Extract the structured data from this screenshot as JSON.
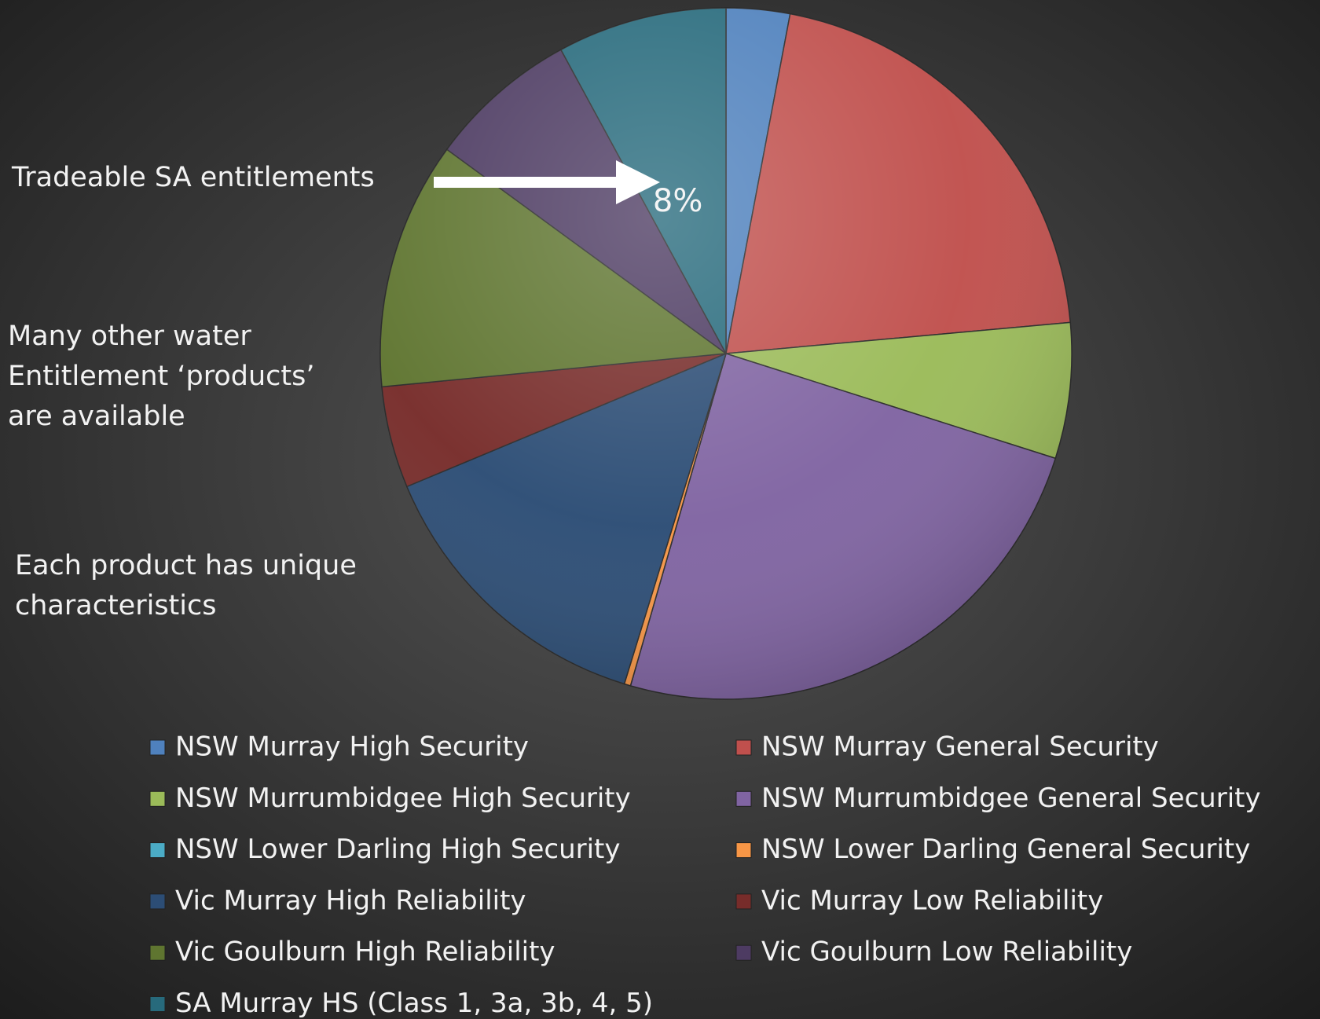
{
  "chart_data": {
    "type": "pie",
    "categories": [
      "NSW Murray High Security",
      "NSW Murray General Security",
      "NSW Murrumbidgee High Security",
      "NSW Murrumbidgee General Security",
      "NSW Lower Darling High Security",
      "NSW Lower Darling General Security",
      "Vic Murray High Reliability",
      "Vic Murray Low Reliability",
      "Vic Goulburn High Reliability",
      "Vic Goulburn Low Reliability",
      "SA Murray HS (Class 1, 3a, 3b, 4, 5)"
    ],
    "values": [
      3,
      20.8,
      6.4,
      24.8,
      0,
      0.3,
      14.1,
      4.8,
      11.7,
      7.1,
      8
    ],
    "value_labels": [
      null,
      null,
      null,
      null,
      null,
      null,
      null,
      null,
      null,
      null,
      "8%"
    ],
    "colors": [
      "#4f81bd",
      "#c0504d",
      "#9bbb59",
      "#8064a2",
      "#4bacc6",
      "#f79646",
      "#2c4d75",
      "#772c2a",
      "#5f7530",
      "#4d3b62",
      "#276a7c"
    ],
    "legend": "bottom",
    "annotations": [
      {
        "lines": [
          "Tradeable SA entitlements"
        ]
      },
      {
        "lines": [
          "Many other water",
          "Entitlement ‘products’",
          "are available"
        ]
      },
      {
        "lines": [
          "Each product has unique",
          "characteristics"
        ]
      }
    ]
  }
}
